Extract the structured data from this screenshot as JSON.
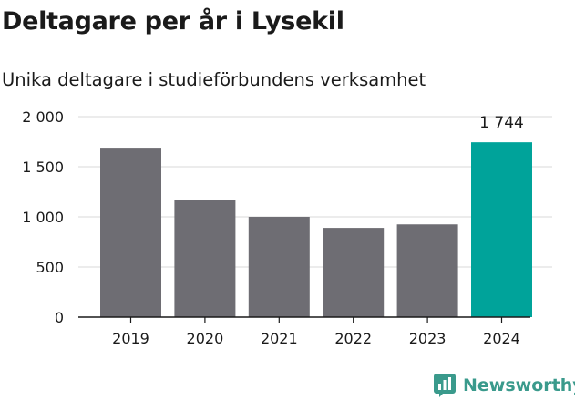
{
  "title": "Deltagare per år i Lysekil",
  "subtitle": "Unika deltagare i studieförbundens verksamhet",
  "brand": {
    "name": "Newsworthy",
    "icon": "bar-chart-icon",
    "color": "#3a9a8c"
  },
  "colors": {
    "bar": "#6e6d73",
    "highlight": "#00a39a",
    "grid": "#d9d9d9",
    "axis": "#1a1a1a",
    "text": "#1a1a1a"
  },
  "chart_data": {
    "type": "bar",
    "title": "Deltagare per år i Lysekil",
    "subtitle": "Unika deltagare i studieförbundens verksamhet",
    "xlabel": "",
    "ylabel": "",
    "categories": [
      "2019",
      "2020",
      "2021",
      "2022",
      "2023",
      "2024"
    ],
    "values": [
      1690,
      1165,
      1000,
      890,
      925,
      1744
    ],
    "highlight_index": 5,
    "data_labels": [
      {
        "category": "2024",
        "text": "1 744"
      }
    ],
    "ylim": [
      0,
      2000
    ],
    "yticks": [
      0,
      500,
      1000,
      1500,
      2000
    ],
    "ytick_labels": [
      "0",
      "500",
      "1 000",
      "1 500",
      "2 000"
    ],
    "grid": "horizontal",
    "legend": "none"
  }
}
